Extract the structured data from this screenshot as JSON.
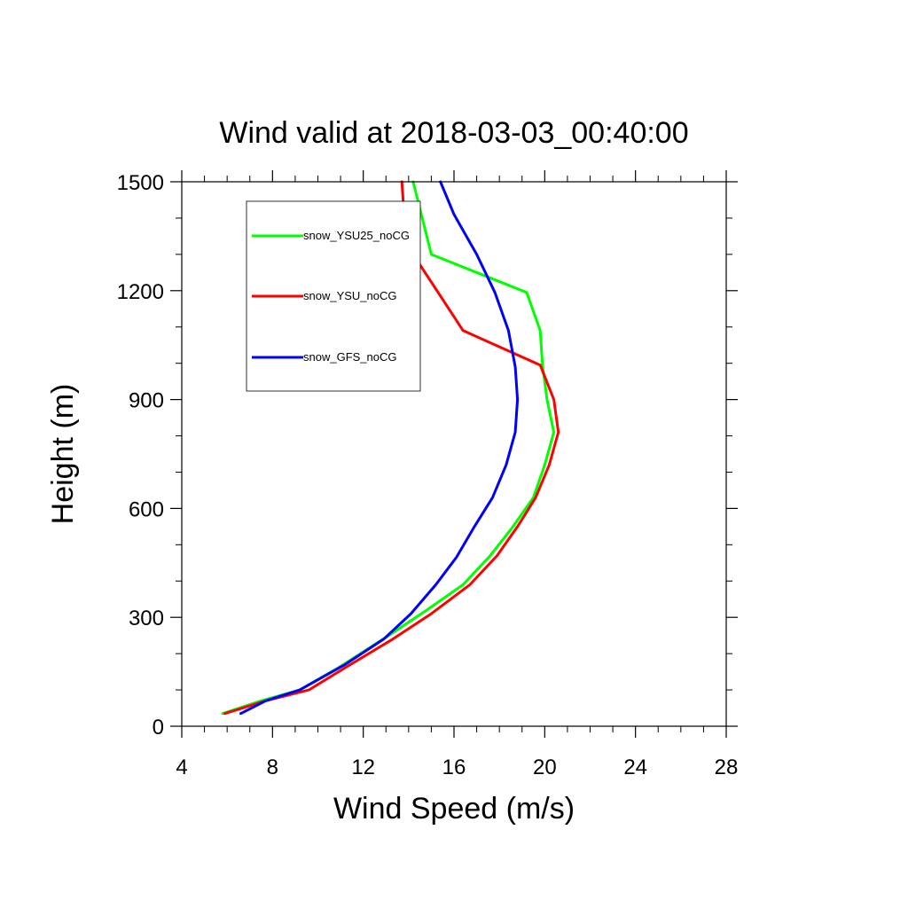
{
  "chart_data": {
    "type": "line",
    "title": "Wind valid at 2018-03-03_00:40:00",
    "xlabel": "Wind Speed (m/s)",
    "ylabel": "Height (m)",
    "xlim": [
      4,
      28
    ],
    "ylim": [
      0,
      1500
    ],
    "xticks": [
      "4",
      "8",
      "12",
      "16",
      "20",
      "24",
      "28"
    ],
    "yticks": [
      "0",
      "300",
      "600",
      "900",
      "1200",
      "1500"
    ],
    "grid": false,
    "legend_position": "top-left",
    "series": [
      {
        "name": "snow_YSU25_noCG",
        "color": "#00ff00",
        "points": [
          [
            5.8,
            35
          ],
          [
            7.5,
            70
          ],
          [
            9.2,
            100
          ],
          [
            11.0,
            165
          ],
          [
            13.0,
            245
          ],
          [
            14.8,
            320
          ],
          [
            16.4,
            390
          ],
          [
            17.6,
            470
          ],
          [
            18.6,
            550
          ],
          [
            19.5,
            630
          ],
          [
            20.0,
            720
          ],
          [
            20.4,
            810
          ],
          [
            20.1,
            900
          ],
          [
            19.9,
            995
          ],
          [
            19.8,
            1090
          ],
          [
            19.2,
            1195
          ],
          [
            15.0,
            1300
          ],
          [
            14.6,
            1400
          ],
          [
            14.2,
            1500
          ]
        ]
      },
      {
        "name": "snow_YSU_noCG",
        "color": "#ff0000",
        "points": [
          [
            5.9,
            35
          ],
          [
            7.7,
            70
          ],
          [
            9.6,
            100
          ],
          [
            11.3,
            165
          ],
          [
            13.3,
            240
          ],
          [
            15.0,
            310
          ],
          [
            16.7,
            390
          ],
          [
            17.9,
            470
          ],
          [
            18.8,
            550
          ],
          [
            19.6,
            630
          ],
          [
            20.2,
            720
          ],
          [
            20.6,
            810
          ],
          [
            20.4,
            900
          ],
          [
            19.8,
            995
          ],
          [
            16.4,
            1090
          ],
          [
            15.3,
            1195
          ],
          [
            14.2,
            1300
          ],
          [
            13.8,
            1410
          ],
          [
            13.7,
            1500
          ]
        ]
      },
      {
        "name": "snow_GFS_noCG",
        "color": "#0000ff",
        "points": [
          [
            6.6,
            35
          ],
          [
            7.7,
            70
          ],
          [
            9.2,
            100
          ],
          [
            11.2,
            170
          ],
          [
            12.9,
            240
          ],
          [
            14.1,
            310
          ],
          [
            15.2,
            390
          ],
          [
            16.1,
            465
          ],
          [
            16.9,
            550
          ],
          [
            17.7,
            630
          ],
          [
            18.3,
            720
          ],
          [
            18.7,
            810
          ],
          [
            18.8,
            900
          ],
          [
            18.7,
            990
          ],
          [
            18.4,
            1090
          ],
          [
            17.8,
            1195
          ],
          [
            17.0,
            1300
          ],
          [
            16.0,
            1410
          ],
          [
            15.4,
            1500
          ]
        ]
      }
    ]
  }
}
